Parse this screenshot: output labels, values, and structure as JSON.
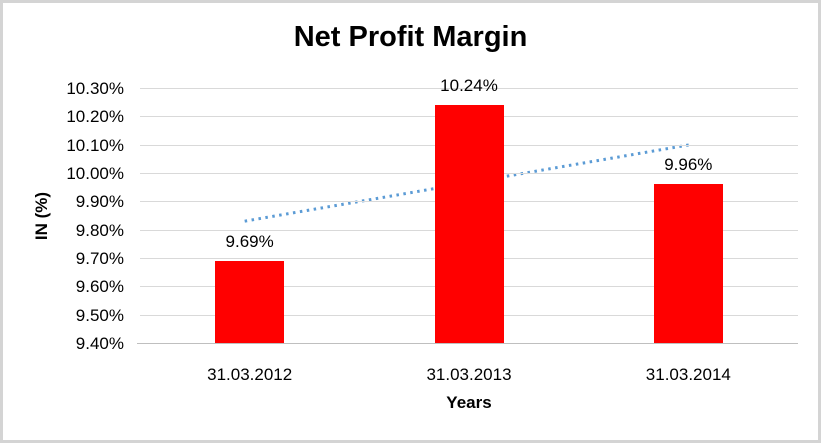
{
  "chart_data": {
    "type": "bar",
    "title": "Net Profit Margin",
    "xlabel": "Years",
    "ylabel": "IN (%)",
    "categories": [
      "31.03.2012",
      "31.03.2013",
      "31.03.2014"
    ],
    "values": [
      9.69,
      10.24,
      9.96
    ],
    "data_labels": [
      "9.69%",
      "10.24%",
      "9.96%"
    ],
    "y_ticks": [
      {
        "value": 10.3,
        "label": "10.30%"
      },
      {
        "value": 10.2,
        "label": "10.20%"
      },
      {
        "value": 10.1,
        "label": "10.10%"
      },
      {
        "value": 10.0,
        "label": "10.00%"
      },
      {
        "value": 9.9,
        "label": "9.90%"
      },
      {
        "value": 9.8,
        "label": "9.80%"
      },
      {
        "value": 9.7,
        "label": "9.70%"
      },
      {
        "value": 9.6,
        "label": "9.60%"
      },
      {
        "value": 9.5,
        "label": "9.50%"
      },
      {
        "value": 9.4,
        "label": "9.40%"
      }
    ],
    "ylim": [
      9.4,
      10.3
    ],
    "grid": true,
    "legend": "none",
    "colors": {
      "bar": "#FF0000",
      "gridline": "#D9D9D9",
      "axis_line": "#BFBFBF",
      "trendline": "#5B9BD5",
      "text": "#000000",
      "chart_border": "#D4D4D4"
    },
    "trendline": {
      "type": "linear",
      "style": "dotted",
      "start_value": 9.83,
      "end_value": 10.1
    }
  }
}
